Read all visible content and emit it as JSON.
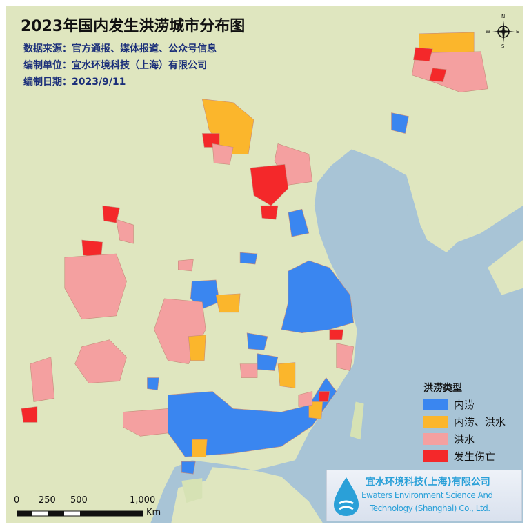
{
  "title": "2023年国内发生洪涝城市分布图",
  "info": {
    "source": "数据来源：官方通报、媒体报道、公众号信息",
    "compiler": "编制单位：宜水环境科技（上海）有限公司",
    "date": "编制日期：2023/9/11"
  },
  "legend": {
    "title": "洪涝类型",
    "items": [
      {
        "label": "内涝",
        "color": "#3a86f0"
      },
      {
        "label": "内涝、洪水",
        "color": "#fbb62c"
      },
      {
        "label": "洪水",
        "color": "#f4a0a0"
      },
      {
        "label": "发生伤亡",
        "color": "#f4282a"
      }
    ]
  },
  "logo": {
    "name_cn": "宜水环境科技(上海)有限公司",
    "name_en_1": "Ewaters Environment Science And",
    "name_en_2": "Technology (Shanghai) Co., Ltd."
  },
  "scale_bar": {
    "labels": [
      "0",
      "250",
      "500",
      "1,000"
    ],
    "unit": "Km"
  },
  "compass": {
    "n": "N",
    "e": "E",
    "s": "S",
    "w": "W"
  },
  "colors": {
    "land": "#dfe6bf",
    "sea": "#a8c4d6",
    "boundary": "#d9a66a"
  }
}
